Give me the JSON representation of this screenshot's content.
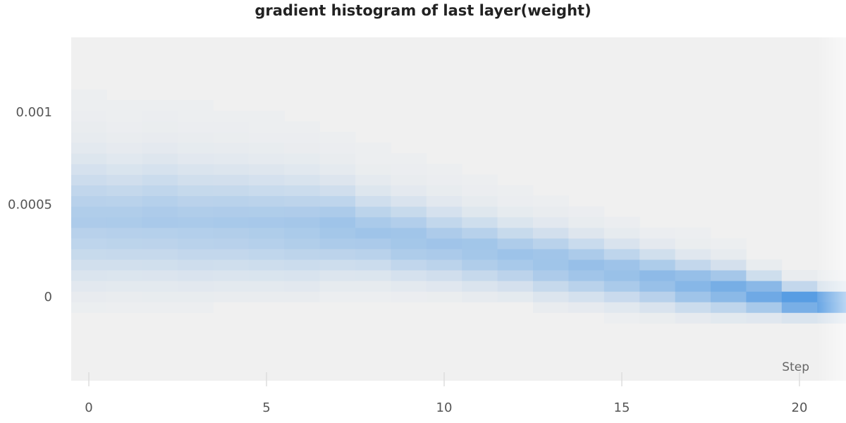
{
  "chart_data": {
    "type": "heatmap",
    "title": "gradient histogram of last layer(weight)",
    "xlabel": "Step",
    "ylabel": "",
    "xlim": [
      -0.5,
      21.5
    ],
    "ylim": [
      -0.00043,
      0.00123
    ],
    "x_ticks": [
      0,
      5,
      10,
      15,
      20
    ],
    "x_tick_labels": [
      "0",
      "5",
      "10",
      "15",
      "20"
    ],
    "y_ticks": [
      0,
      0.0005,
      0.001
    ],
    "y_tick_labels": [
      "0",
      "0.0005",
      "0.001"
    ],
    "grid": false,
    "colors": {
      "background": "#f0f0f0",
      "low": "#f0f0f0",
      "high": "#3b8de0",
      "text": "#555555",
      "title": "#222222",
      "tick_mark": "#dddddd"
    },
    "steps": [
      0,
      1,
      2,
      3,
      4,
      5,
      6,
      7,
      8,
      9,
      10,
      11,
      12,
      13,
      14,
      15,
      16,
      17,
      18,
      19,
      20,
      21
    ],
    "series": [
      {
        "step": 0,
        "center": 0.0004,
        "spread": 0.0003,
        "peak": 0.32
      },
      {
        "step": 1,
        "center": 0.00039,
        "spread": 0.00028,
        "peak": 0.33
      },
      {
        "step": 2,
        "center": 0.0004,
        "spread": 0.00029,
        "peak": 0.34
      },
      {
        "step": 3,
        "center": 0.00038,
        "spread": 0.00028,
        "peak": 0.34
      },
      {
        "step": 4,
        "center": 0.00038,
        "spread": 0.00027,
        "peak": 0.35
      },
      {
        "step": 5,
        "center": 0.00037,
        "spread": 0.00026,
        "peak": 0.36
      },
      {
        "step": 6,
        "center": 0.00036,
        "spread": 0.00025,
        "peak": 0.38
      },
      {
        "step": 7,
        "center": 0.00036,
        "spread": 0.00022,
        "peak": 0.42
      },
      {
        "step": 8,
        "center": 0.00033,
        "spread": 0.0002,
        "peak": 0.4
      },
      {
        "step": 9,
        "center": 0.0003,
        "spread": 0.00019,
        "peak": 0.42
      },
      {
        "step": 10,
        "center": 0.00027,
        "spread": 0.00018,
        "peak": 0.4
      },
      {
        "step": 11,
        "center": 0.00024,
        "spread": 0.00017,
        "peak": 0.42
      },
      {
        "step": 12,
        "center": 0.00021,
        "spread": 0.00016,
        "peak": 0.42
      },
      {
        "step": 13,
        "center": 0.00018,
        "spread": 0.00016,
        "peak": 0.44
      },
      {
        "step": 14,
        "center": 0.00015,
        "spread": 0.00015,
        "peak": 0.46
      },
      {
        "step": 15,
        "center": 0.00012,
        "spread": 0.00014,
        "peak": 0.48
      },
      {
        "step": 16,
        "center": 9e-05,
        "spread": 0.00013,
        "peak": 0.52
      },
      {
        "step": 17,
        "center": 6e-05,
        "spread": 0.00012,
        "peak": 0.58
      },
      {
        "step": 18,
        "center": 4e-05,
        "spread": 0.00011,
        "peak": 0.64
      },
      {
        "step": 19,
        "center": 1e-05,
        "spread": 9e-05,
        "peak": 0.72
      },
      {
        "step": 20,
        "center": -2e-05,
        "spread": 7e-05,
        "peak": 0.88
      },
      {
        "step": 21,
        "center": -3e-05,
        "spread": 6e-05,
        "peak": 0.95
      }
    ]
  }
}
